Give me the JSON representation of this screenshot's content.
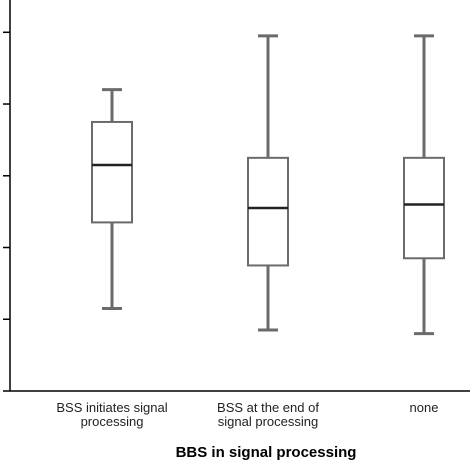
{
  "chart_data": {
    "type": "boxplot",
    "title": "",
    "xlabel": "BBS in signal processing",
    "ylabel": "",
    "categories": [
      [
        "BSS initiates signal",
        "processing"
      ],
      [
        "BSS at the end of",
        "signal processing"
      ],
      [
        "none"
      ]
    ],
    "boxes": [
      {
        "whisker_low": 1.15,
        "q1": 2.35,
        "median": 3.15,
        "q3": 3.75,
        "whisker_high": 4.2
      },
      {
        "whisker_low": 0.85,
        "q1": 1.75,
        "median": 2.55,
        "q3": 3.25,
        "whisker_high": 4.95
      },
      {
        "whisker_low": 0.8,
        "q1": 1.85,
        "median": 2.6,
        "q3": 3.25,
        "whisker_high": 4.95
      }
    ],
    "ylim": [
      0.0,
      5.45
    ],
    "yticks": [
      0,
      1,
      2,
      3,
      4,
      5
    ],
    "grid": false,
    "colors": {
      "stroke": "#6b6b6b",
      "median": "#222222",
      "box_fill": "#ffffff",
      "axis": "#000000"
    }
  }
}
